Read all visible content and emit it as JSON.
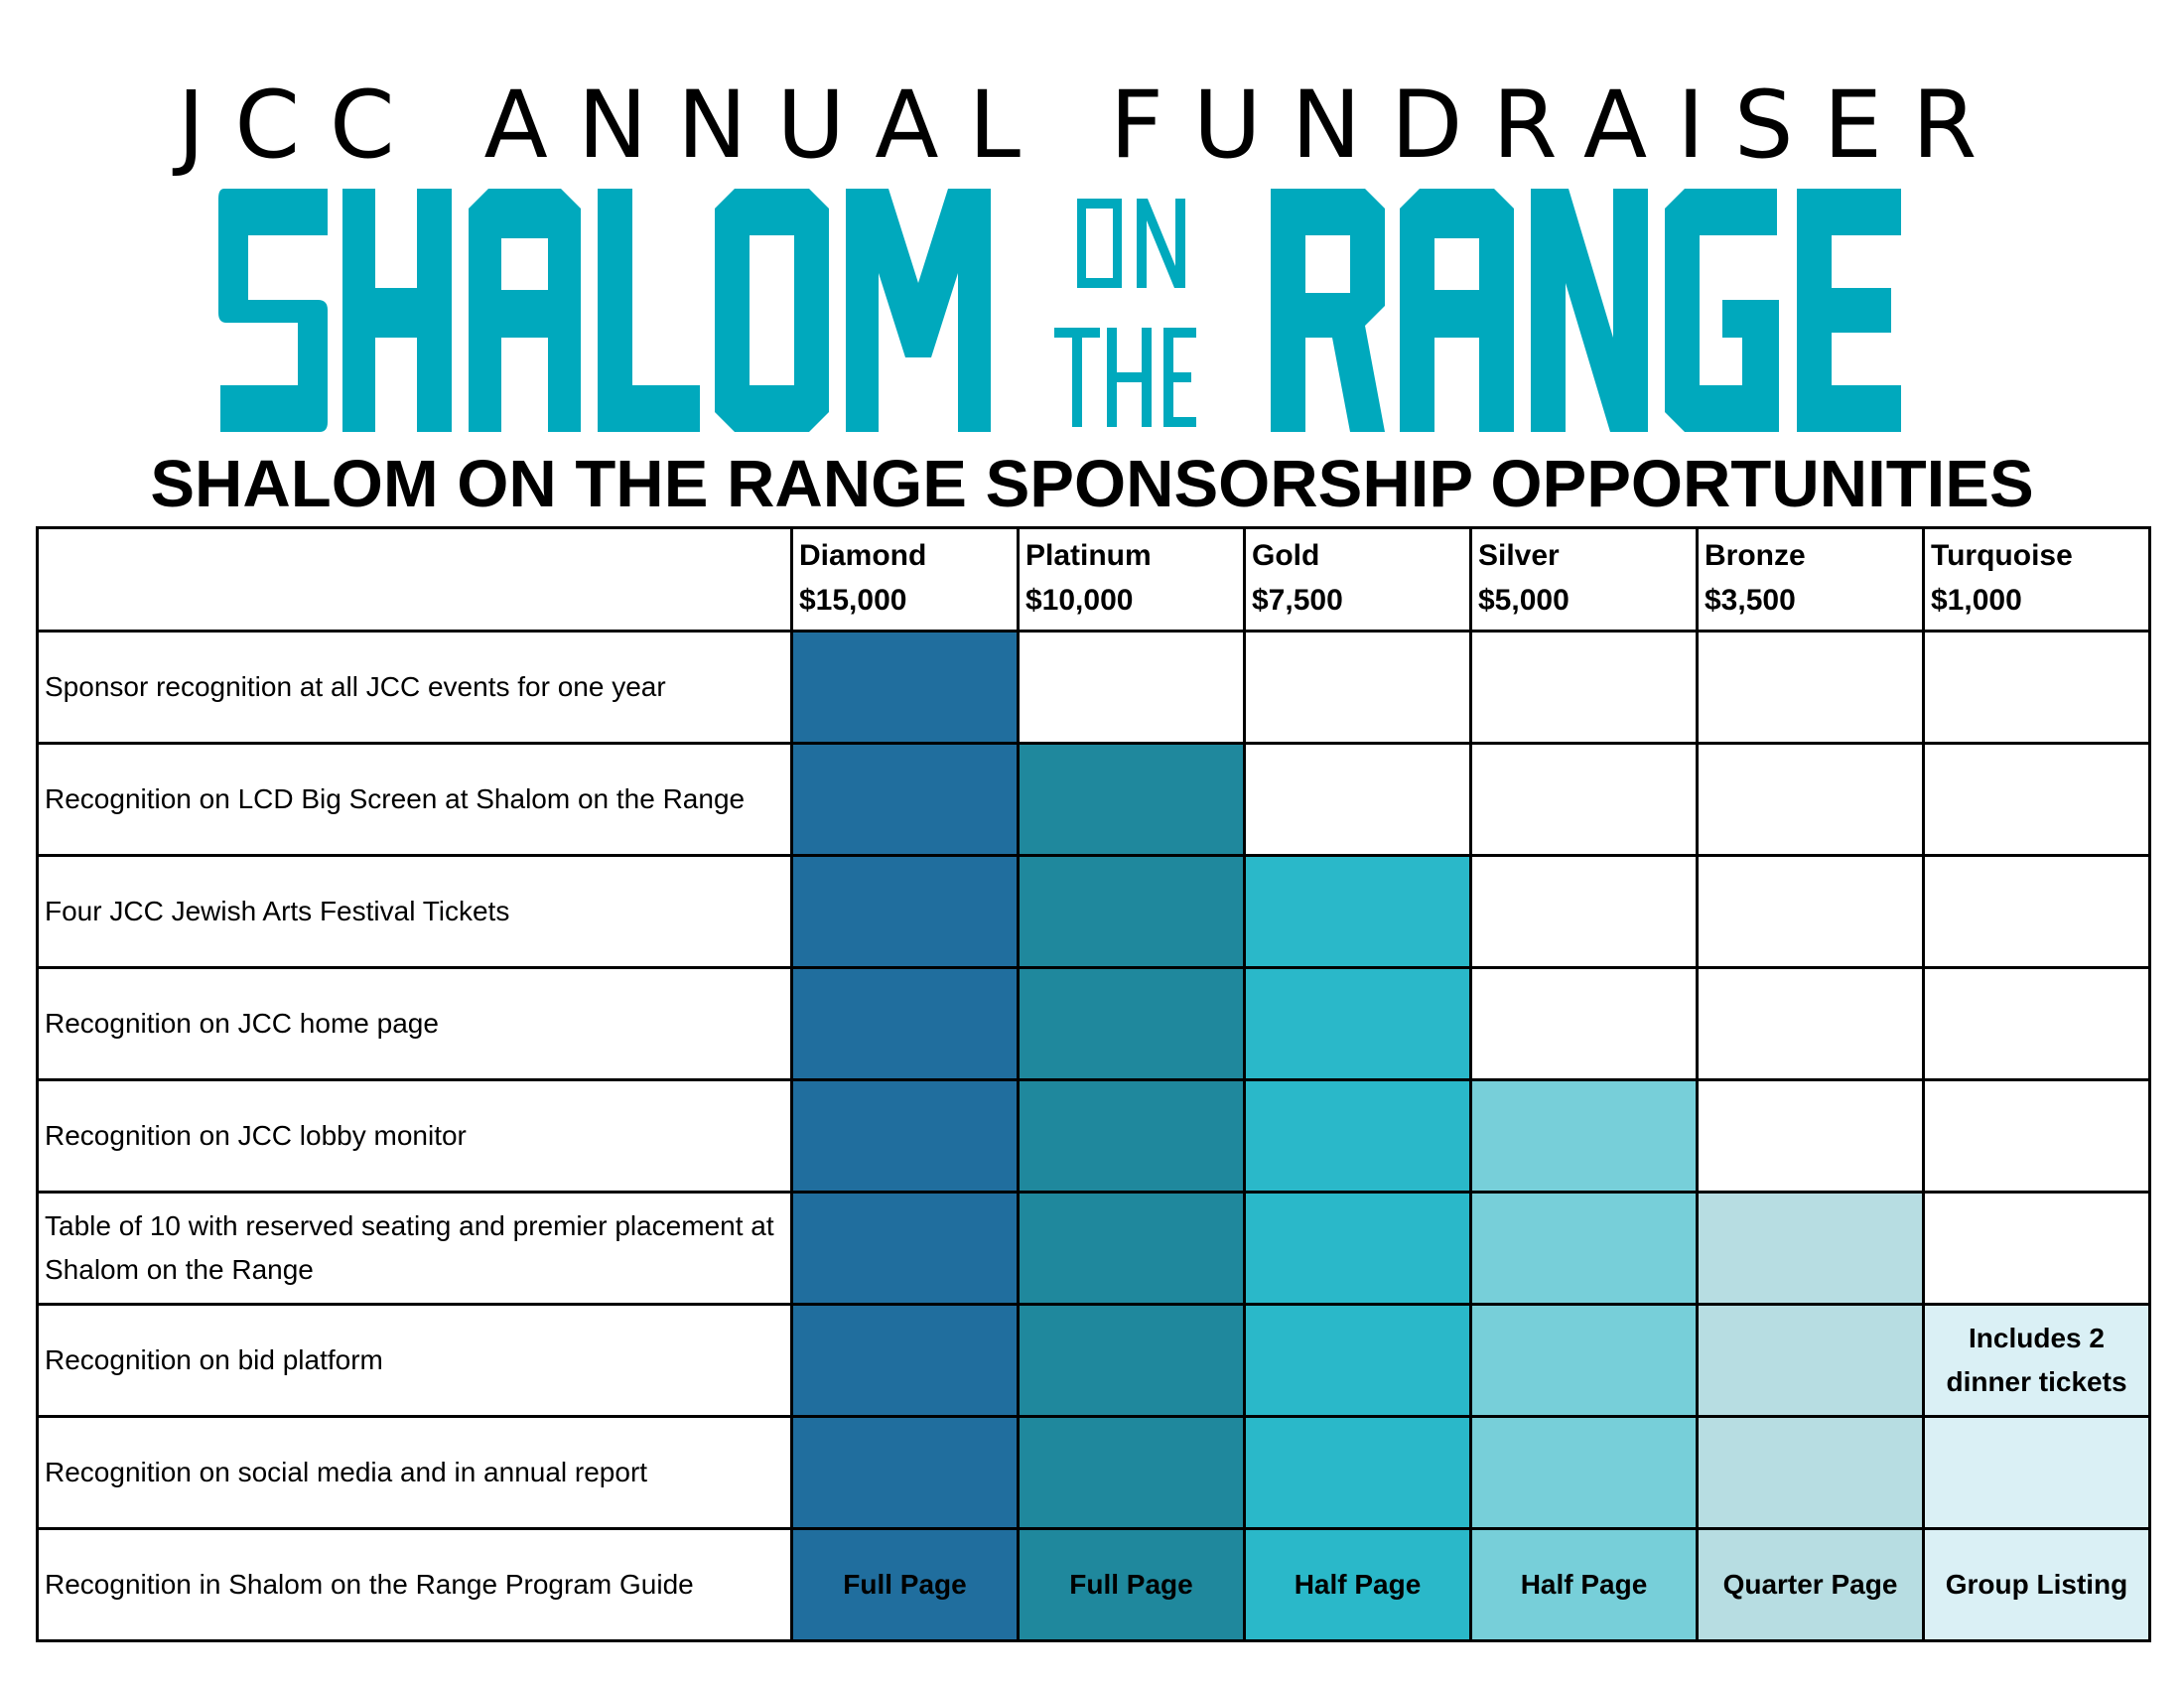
{
  "header": {
    "org_title": "JCC ANNUAL FUNDRAISER",
    "logo_words": [
      "SHALOM",
      "ON",
      "THE",
      "RANGE"
    ],
    "section_title": "SHALOM ON THE RANGE SPONSORSHIP OPPORTUNITIES"
  },
  "colors": {
    "brand_teal": "#00a9bd",
    "Diamond": "#206e9e",
    "Platinum": "#1f889d",
    "Gold": "#2ab8c9",
    "Silver": "#77cfd9",
    "Bronze": "#b7dde2",
    "Turquoise": "#daf0f5"
  },
  "tiers": [
    {
      "name": "Diamond",
      "price": "$15,000",
      "key": "diamond"
    },
    {
      "name": "Platinum",
      "price": "$10,000",
      "key": "platinum"
    },
    {
      "name": "Gold",
      "price": "$7,500",
      "key": "gold"
    },
    {
      "name": "Silver",
      "price": "$5,000",
      "key": "silver"
    },
    {
      "name": "Bronze",
      "price": "$3,500",
      "key": "bronze"
    },
    {
      "name": "Turquoise",
      "price": "$1,000",
      "key": "turquoise"
    }
  ],
  "benefits": [
    {
      "label": "Sponsor recognition at all JCC events for one year",
      "included_tiers": 1,
      "cells": [
        "",
        "",
        "",
        "",
        "",
        ""
      ]
    },
    {
      "label": "Recognition on LCD Big Screen at Shalom on the Range",
      "included_tiers": 2,
      "cells": [
        "",
        "",
        "",
        "",
        "",
        ""
      ]
    },
    {
      "label": "Four JCC Jewish Arts Festival Tickets",
      "included_tiers": 3,
      "cells": [
        "",
        "",
        "",
        "",
        "",
        ""
      ]
    },
    {
      "label": "Recognition on JCC home page",
      "included_tiers": 3,
      "cells": [
        "",
        "",
        "",
        "",
        "",
        ""
      ]
    },
    {
      "label": "Recognition on JCC lobby monitor",
      "included_tiers": 4,
      "cells": [
        "",
        "",
        "",
        "",
        "",
        ""
      ]
    },
    {
      "label": "Table of 10 with reserved seating and premier placement at Shalom on the Range",
      "included_tiers": 5,
      "cells": [
        "",
        "",
        "",
        "",
        "",
        ""
      ]
    },
    {
      "label": "Recognition on bid platform",
      "included_tiers": 6,
      "cells": [
        "",
        "",
        "",
        "",
        "",
        "Includes 2 dinner tickets"
      ]
    },
    {
      "label": "Recognition on social media and in annual report",
      "included_tiers": 6,
      "cells": [
        "",
        "",
        "",
        "",
        "",
        ""
      ]
    },
    {
      "label": "Recognition in Shalom on the Range Program Guide",
      "included_tiers": 6,
      "cells": [
        "Full Page",
        "Full Page",
        "Half Page",
        "Half Page",
        "Quarter Page",
        "Group Listing"
      ]
    }
  ]
}
